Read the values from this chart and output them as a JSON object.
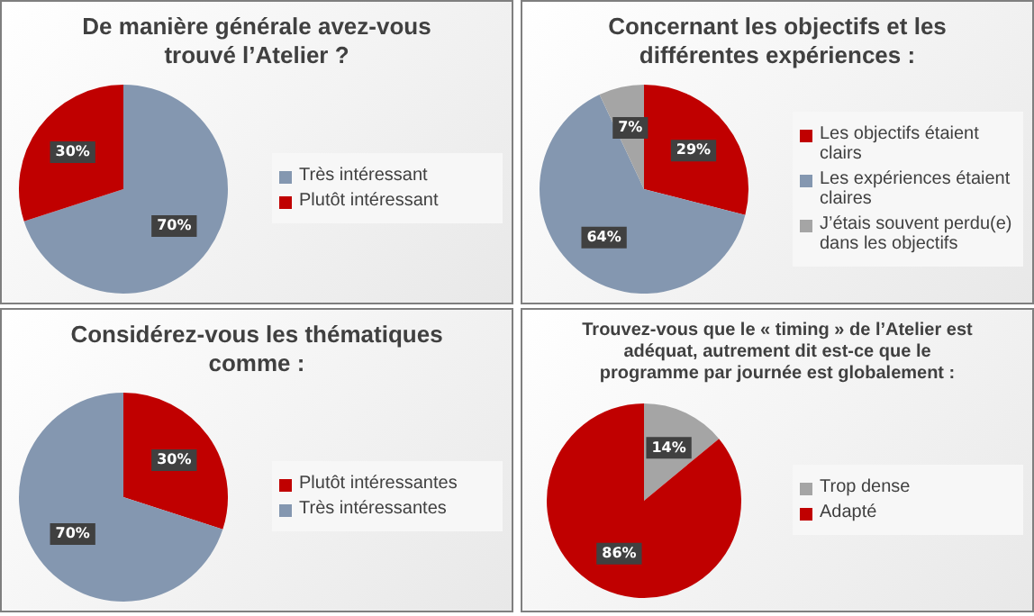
{
  "chart_data": [
    {
      "type": "pie",
      "title": "De manière générale avez-vous trouvé l’Atelier ?",
      "categories": [
        "Très intéressant",
        "Plutôt intéressant"
      ],
      "values": [
        70,
        30
      ],
      "colors": [
        "#8497b0",
        "#c00000"
      ],
      "value_labels": [
        "70%",
        "30%"
      ],
      "legend": "right"
    },
    {
      "type": "pie",
      "title": "Concernant les objectifs et les différentes expériences  :",
      "categories": [
        "Les objectifs étaient clairs",
        "Les expériences étaient claires",
        "J’étais souvent perdu(e) dans les objectifs"
      ],
      "values": [
        29,
        64,
        7
      ],
      "colors": [
        "#c00000",
        "#8497b0",
        "#a5a5a5"
      ],
      "value_labels": [
        "29%",
        "64%",
        "7%"
      ],
      "legend": "right"
    },
    {
      "type": "pie",
      "title": "Considérez-vous les thématiques comme  :",
      "categories": [
        "Plutôt intéressantes",
        "Très intéressantes"
      ],
      "values": [
        30,
        70
      ],
      "colors": [
        "#c00000",
        "#8497b0"
      ],
      "value_labels": [
        "30%",
        "70%"
      ],
      "legend": "right"
    },
    {
      "type": "pie",
      "title": "Trouvez-vous que le « timing » de l’Atelier est adéquat, autrement dit est-ce que le programme par journée est globalement :",
      "categories": [
        "Trop dense",
        "Adapté"
      ],
      "values": [
        14,
        86
      ],
      "colors": [
        "#a5a5a5",
        "#c00000"
      ],
      "value_labels": [
        "14%",
        "86%"
      ],
      "legend": "right"
    }
  ]
}
